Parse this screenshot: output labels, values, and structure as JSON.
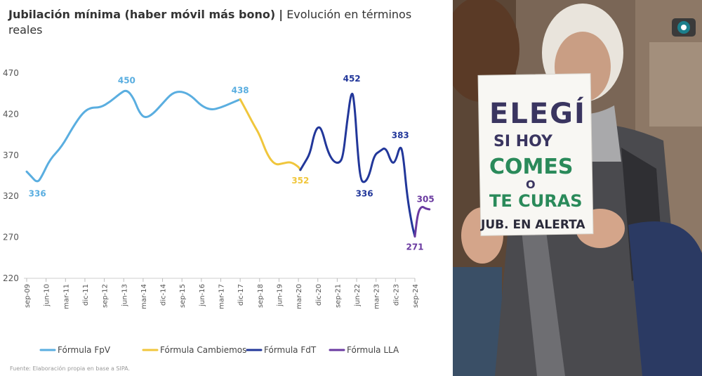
{
  "header": {
    "title_bold": "Jubilación mínima (haber móvil más bono)",
    "separator": "|",
    "title_rest": "Evolución en términos reales"
  },
  "source": "Fuente: Elaboración propia en base a SIPA.",
  "colors": {
    "FpV": "#5aaee0",
    "Cambiemos": "#f0c63c",
    "FdT": "#22379a",
    "LLA": "#6a3aa0"
  },
  "chart_data": {
    "type": "line",
    "title": "Jubilación mínima (haber móvil más bono) | Evolución en términos reales",
    "ylim": [
      220,
      470
    ],
    "yticks": [
      220,
      270,
      320,
      370,
      420,
      470
    ],
    "xticks": [
      "sep-09",
      "jun-10",
      "mar-11",
      "dic-11",
      "sep-12",
      "jun-13",
      "mar-14",
      "dic-14",
      "sep-15",
      "jun-16",
      "mar-17",
      "dic-17",
      "sep-18",
      "jun-19",
      "mar-20",
      "dic-20",
      "sep-21",
      "jun-22",
      "mar-23",
      "dic-23",
      "sep-24"
    ],
    "grid": false,
    "legend": "bottom",
    "series": [
      {
        "name": "Fórmula FpV",
        "color": "#5aaee0",
        "points": [
          [
            0,
            350
          ],
          [
            0.2,
            345
          ],
          [
            0.55,
            336
          ],
          [
            0.8,
            345
          ],
          [
            1.2,
            365
          ],
          [
            1.8,
            380
          ],
          [
            2.4,
            405
          ],
          [
            2.9,
            422
          ],
          [
            3.3,
            428
          ],
          [
            3.8,
            428
          ],
          [
            4.3,
            435
          ],
          [
            4.8,
            445
          ],
          [
            5.15,
            450
          ],
          [
            5.5,
            440
          ],
          [
            5.8,
            422
          ],
          [
            6.1,
            415
          ],
          [
            6.5,
            420
          ],
          [
            7.0,
            433
          ],
          [
            7.5,
            446
          ],
          [
            8.0,
            448
          ],
          [
            8.5,
            442
          ],
          [
            9.0,
            430
          ],
          [
            9.5,
            425
          ],
          [
            10.0,
            428
          ],
          [
            10.5,
            433
          ],
          [
            11.0,
            438
          ]
        ]
      },
      {
        "name": "Fórmula Cambiemos",
        "color": "#f0c63c",
        "points": [
          [
            11.0,
            438
          ],
          [
            11.3,
            425
          ],
          [
            11.7,
            407
          ],
          [
            12.0,
            395
          ],
          [
            12.4,
            370
          ],
          [
            12.8,
            358
          ],
          [
            13.2,
            360
          ],
          [
            13.6,
            362
          ],
          [
            14.0,
            356
          ],
          [
            14.1,
            352
          ]
        ]
      },
      {
        "name": "Fórmula FdT",
        "color": "#22379a",
        "points": [
          [
            14.1,
            352
          ],
          [
            14.3,
            360
          ],
          [
            14.6,
            372
          ],
          [
            14.8,
            395
          ],
          [
            15.0,
            405
          ],
          [
            15.2,
            402
          ],
          [
            15.5,
            375
          ],
          [
            15.8,
            362
          ],
          [
            16.1,
            360
          ],
          [
            16.3,
            368
          ],
          [
            16.5,
            410
          ],
          [
            16.75,
            452
          ],
          [
            16.9,
            430
          ],
          [
            17.05,
            375
          ],
          [
            17.2,
            340
          ],
          [
            17.4,
            336
          ],
          [
            17.65,
            345
          ],
          [
            17.9,
            370
          ],
          [
            18.2,
            375
          ],
          [
            18.5,
            380
          ],
          [
            18.8,
            360
          ],
          [
            19.0,
            362
          ],
          [
            19.25,
            383
          ],
          [
            19.4,
            370
          ],
          [
            19.6,
            320
          ],
          [
            19.85,
            285
          ],
          [
            20.0,
            271
          ]
        ]
      },
      {
        "name": "Fórmula LLA",
        "color": "#6a3aa0",
        "points": [
          [
            20.0,
            271
          ],
          [
            20.15,
            300
          ],
          [
            20.35,
            308
          ],
          [
            20.55,
            305
          ],
          [
            20.75,
            304
          ]
        ]
      }
    ],
    "annotations": [
      {
        "x": 0.55,
        "y": 336,
        "text": "336",
        "series": "Fórmula FpV"
      },
      {
        "x": 5.15,
        "y": 450,
        "text": "450",
        "series": "Fórmula FpV"
      },
      {
        "x": 11.0,
        "y": 438,
        "text": "438",
        "series": "Fórmula FpV"
      },
      {
        "x": 14.1,
        "y": 352,
        "text": "352",
        "series": "Fórmula Cambiemos"
      },
      {
        "x": 16.75,
        "y": 452,
        "text": "452",
        "series": "Fórmula FdT"
      },
      {
        "x": 17.4,
        "y": 336,
        "text": "336",
        "series": "Fórmula FdT"
      },
      {
        "x": 19.25,
        "y": 383,
        "text": "383",
        "series": "Fórmula FdT"
      },
      {
        "x": 20.0,
        "y": 271,
        "text": "271",
        "series": "Fórmula LLA"
      },
      {
        "x": 20.55,
        "y": 305,
        "text": "305",
        "series": "Fórmula LLA"
      }
    ]
  },
  "photo": {
    "sign_lines": [
      "ELEGÍ",
      "SI HOY",
      "COMES",
      "O",
      "TE CURAS",
      "JUB. EN ALERTA"
    ]
  }
}
